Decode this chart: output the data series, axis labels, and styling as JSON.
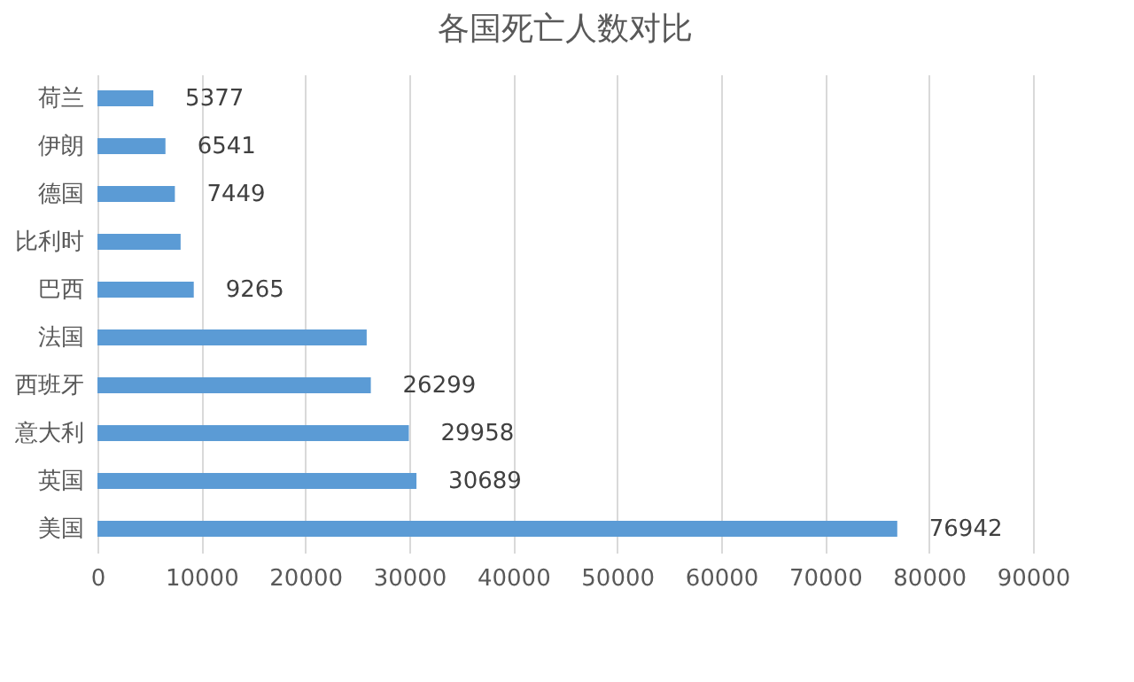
{
  "chart_data": {
    "type": "bar",
    "orientation": "horizontal",
    "title": "各国死亡人数对比",
    "categories": [
      "荷兰",
      "伊朗",
      "德国",
      "比利时",
      "巴西",
      "法国",
      "西班牙",
      "意大利",
      "英国",
      "美国"
    ],
    "values": [
      5377,
      6541,
      7449,
      8000,
      9265,
      25900,
      26299,
      29958,
      30689,
      76942
    ],
    "value_labels": [
      "5377",
      "6541",
      "7449",
      null,
      "9265",
      null,
      "26299",
      "29958",
      "30689",
      "76942"
    ],
    "color": "#5b9bd5",
    "xlim": [
      0,
      90000
    ],
    "xticks": [
      0,
      10000,
      20000,
      30000,
      40000,
      50000,
      60000,
      70000,
      80000,
      90000
    ],
    "grid": "x"
  }
}
